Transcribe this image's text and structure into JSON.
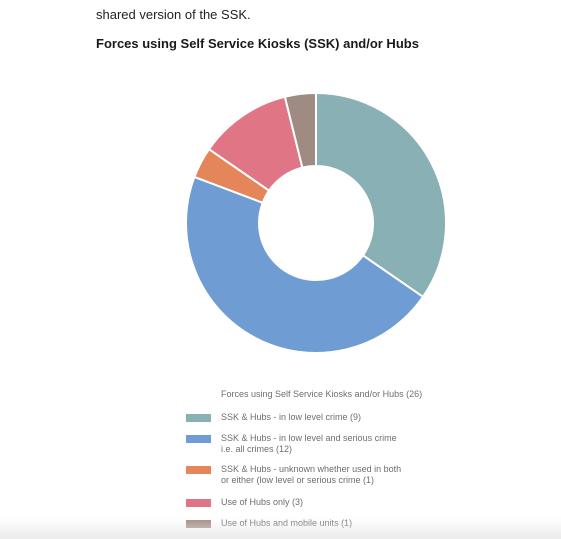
{
  "intro_text": "shared version of the SSK.",
  "chart_data": {
    "type": "pie",
    "title": "Forces using Self Service Kiosks (SSK) and/or Hubs",
    "legend_title": "Forces using Self Service Kiosks and/or Hubs (26)",
    "legend_position": "bottom",
    "donut": true,
    "total": 26,
    "series": [
      {
        "name": "SSK & Hubs - in low level crime (9)",
        "label_lines": [
          "SSK & Hubs - in low level crime (9)"
        ],
        "value": 9,
        "color": "#88b0b5"
      },
      {
        "name": "SSK & Hubs - in low level and serious crime i.e. all crimes (12)",
        "label_lines": [
          "SSK & Hubs - in low level and serious crime",
          "i.e. all crimes (12)"
        ],
        "value": 12,
        "color": "#6f9cd2"
      },
      {
        "name": "SSK & Hubs - unknown whether used in both or either (low level or serious crime (1)",
        "label_lines": [
          "SSK & Hubs - unknown whether used in both",
          "or either (low level or serious crime (1)"
        ],
        "value": 1,
        "color": "#e5855a"
      },
      {
        "name": "Use of Hubs only (3)",
        "label_lines": [
          "Use of Hubs only (3)"
        ],
        "value": 3,
        "color": "#e07585"
      },
      {
        "name": "Use of Hubs and mobile units (1)",
        "label_lines": [
          "Use of Hubs and mobile units (1)"
        ],
        "value": 1,
        "color": "#a08b82"
      }
    ]
  }
}
